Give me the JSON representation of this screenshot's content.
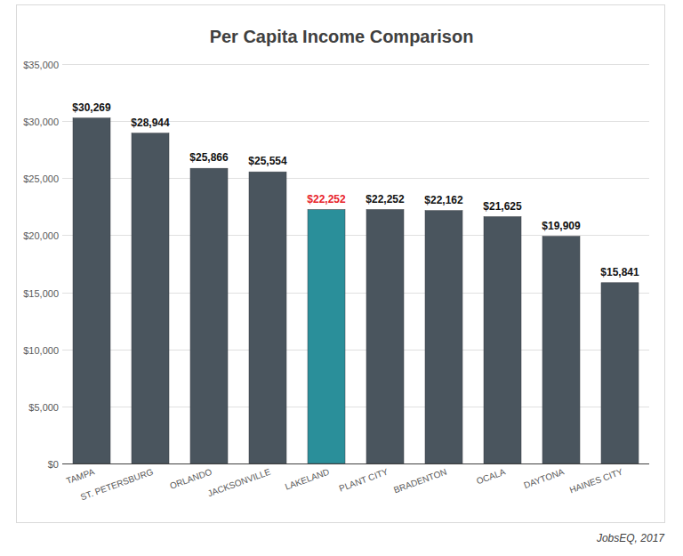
{
  "chart_data": {
    "type": "bar",
    "title": "Per Capita Income Comparison",
    "categories": [
      "TAMPA",
      "ST. PETERSBURG",
      "ORLANDO",
      "JACKSONVILLE",
      "LAKELAND",
      "PLANT CITY",
      "BRADENTON",
      "OCALA",
      "DAYTONA",
      "HAINES CITY"
    ],
    "values": [
      30269,
      28944,
      25866,
      25554,
      22252,
      22252,
      22162,
      21625,
      19909,
      15841
    ],
    "value_labels": [
      "$30,269",
      "$28,944",
      "$25,866",
      "$25,554",
      "$22,252",
      "$22,252",
      "$22,162",
      "$21,625",
      "$19,909",
      "$15,841"
    ],
    "colors": [
      "#4a555e",
      "#4a555e",
      "#4a555e",
      "#4a555e",
      "#2a8f9a",
      "#4a555e",
      "#4a555e",
      "#4a555e",
      "#4a555e",
      "#4a555e"
    ],
    "data_labels": true,
    "ylim": [
      0,
      35000
    ],
    "yticks": [
      {
        "value": 0,
        "label": "$0"
      },
      {
        "value": 5000,
        "label": "$5,000"
      },
      {
        "value": 10000,
        "label": "$10,000"
      },
      {
        "value": 15000,
        "label": "$15,000"
      },
      {
        "value": 20000,
        "label": "$20,000"
      },
      {
        "value": 25000,
        "label": "$25,000"
      },
      {
        "value": 30000,
        "label": "$30,000"
      },
      {
        "value": 35000,
        "label": "$35,000"
      }
    ],
    "grid": true,
    "annotations": [
      "JobsEQ, 2017"
    ]
  }
}
